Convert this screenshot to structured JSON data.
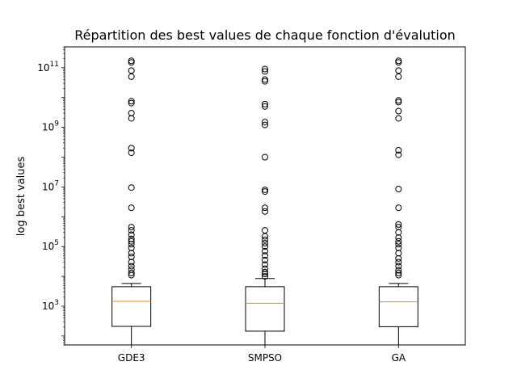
{
  "chart_data": {
    "type": "box",
    "title": "Répartition des best values de chaque fonction d'évalution",
    "xlabel": "",
    "ylabel": "log best values",
    "yscale": "log",
    "ylim": [
      50,
      500000000000
    ],
    "yticks": [
      {
        "value": 1000,
        "base": "10",
        "exp": "3"
      },
      {
        "value": 100000,
        "base": "10",
        "exp": "5"
      },
      {
        "value": 10000000,
        "base": "10",
        "exp": "7"
      },
      {
        "value": 1000000000,
        "base": "10",
        "exp": "9"
      },
      {
        "value": 100000000000,
        "base": "10",
        "exp": "11"
      }
    ],
    "grid": false,
    "categories": [
      "GDE3",
      "SMPSO",
      "GA"
    ],
    "boxes": [
      {
        "name": "GDE3",
        "whisker_low": 50,
        "q1": 210,
        "median": 1450,
        "q3": 4500,
        "whisker_high": 5800,
        "fliers": [
          11000,
          13000,
          17000,
          22000,
          30000,
          45000,
          60000,
          90000,
          120000,
          150000,
          180000,
          250000,
          350000,
          450000,
          2000000,
          9500000,
          140000000,
          200000000,
          2000000000,
          3000000000,
          6500000000,
          7500000000,
          50000000000,
          80000000000,
          150000000000,
          170000000000
        ]
      },
      {
        "name": "SMPSO",
        "whisker_low": 50,
        "q1": 145,
        "median": 1250,
        "q3": 4500,
        "whisker_high": 8500,
        "fliers": [
          10000,
          12000,
          14000,
          18000,
          25000,
          35000,
          50000,
          70000,
          100000,
          130000,
          170000,
          220000,
          350000,
          1500000,
          2000000,
          7000000,
          8000000,
          100000000,
          1200000000,
          1500000000,
          5000000000,
          6000000000,
          35000000000,
          40000000000,
          75000000000,
          90000000000
        ]
      },
      {
        "name": "GA",
        "whisker_low": 50,
        "q1": 205,
        "median": 1400,
        "q3": 4500,
        "whisker_high": 5800,
        "fliers": [
          11000,
          13000,
          16000,
          22000,
          30000,
          40000,
          60000,
          90000,
          120000,
          150000,
          200000,
          300000,
          450000,
          550000,
          2000000,
          8500000,
          120000000,
          170000000,
          2000000000,
          3500000000,
          7000000000,
          8000000000,
          50000000000,
          80000000000,
          150000000000,
          170000000000
        ]
      }
    ],
    "colors": {
      "box": "#000000",
      "median": "#ff7f0e",
      "flier": "#000000",
      "background": "#ffffff"
    }
  }
}
